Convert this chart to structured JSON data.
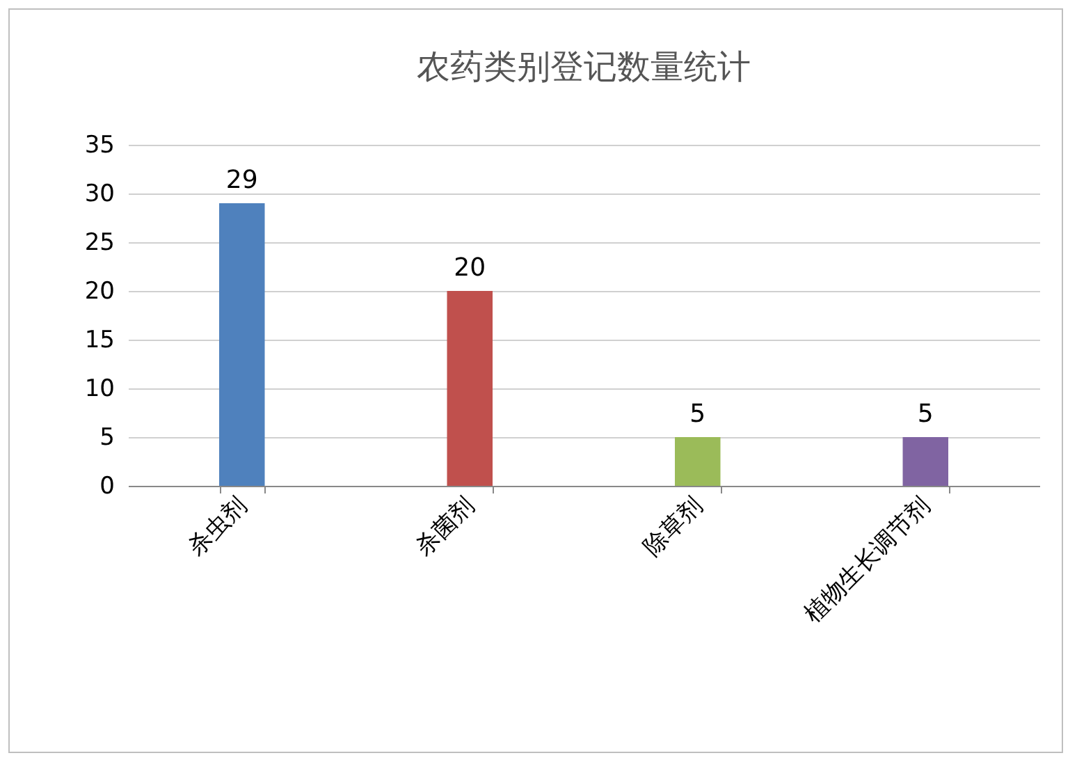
{
  "chart_data": {
    "type": "bar",
    "title": "农药类别登记数量统计",
    "categories": [
      "杀虫剂",
      "杀菌剂",
      "除草剂",
      "植物生长调节剂"
    ],
    "values": [
      29,
      20,
      5,
      5
    ],
    "colors": [
      "#4f81bd",
      "#c0504d",
      "#9bbb59",
      "#8064a2"
    ],
    "ylim": [
      0,
      35
    ],
    "yticks": [
      0,
      5,
      10,
      15,
      20,
      25,
      30,
      35
    ],
    "grid": "y",
    "data_labels": true
  }
}
